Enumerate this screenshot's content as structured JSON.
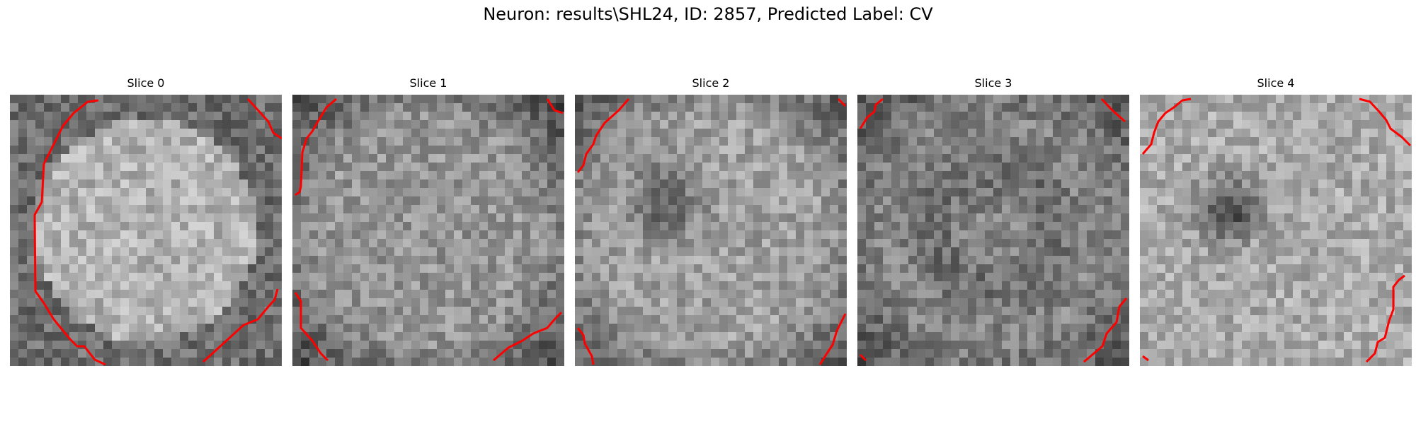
{
  "figure": {
    "suptitle": "Neuron: results\\SHL24, ID: 2857, Predicted Label: CV",
    "colormap": "gray",
    "contour_color": "#ff0000"
  },
  "panels": [
    {
      "title": "Slice 0",
      "pattern": "bright-disk",
      "seed": 11
    },
    {
      "title": "Slice 1",
      "pattern": "uniform",
      "seed": 23
    },
    {
      "title": "Slice 2",
      "pattern": "dark-center-small",
      "seed": 37
    },
    {
      "title": "Slice 3",
      "pattern": "dark-ring",
      "seed": 41
    },
    {
      "title": "Slice 4",
      "pattern": "dark-center",
      "seed": 53
    }
  ]
}
